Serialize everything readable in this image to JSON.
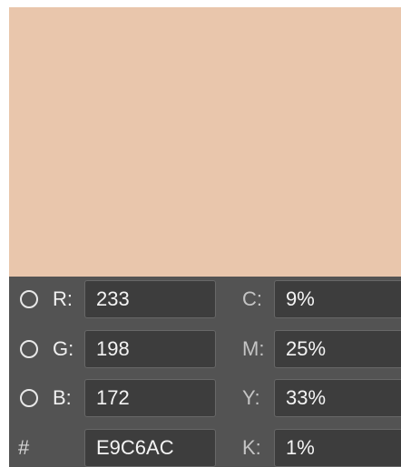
{
  "rgb": [
    {
      "label": "R:",
      "value": "233"
    },
    {
      "label": "G:",
      "value": "198"
    },
    {
      "label": "B:",
      "value": "172"
    }
  ],
  "hex": {
    "label": "#",
    "value": "E9C6AC"
  },
  "cmyk": [
    {
      "label": "C:",
      "value": "9%"
    },
    {
      "label": "M:",
      "value": "25%"
    },
    {
      "label": "Y:",
      "value": "33%"
    },
    {
      "label": "K:",
      "value": "1%"
    }
  ]
}
